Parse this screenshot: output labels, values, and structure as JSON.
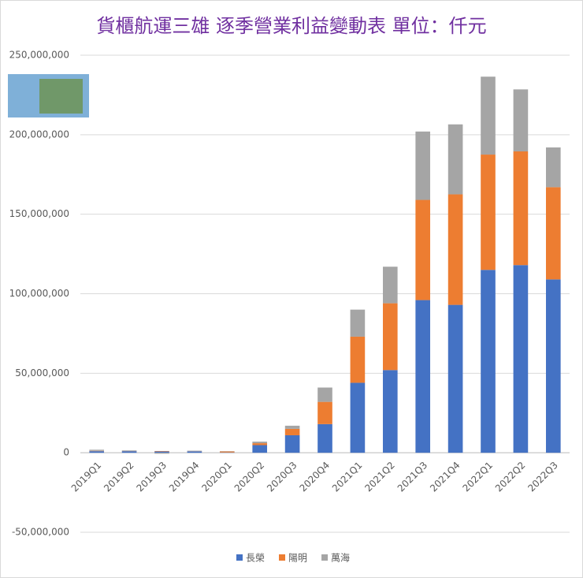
{
  "chart_data": {
    "type": "bar",
    "stacked": true,
    "title": "貨櫃航運三雄 逐季營業利益變動表 單位：仟元",
    "categories": [
      "2019Q1",
      "2019Q2",
      "2019Q3",
      "2019Q4",
      "2020Q1",
      "2020Q2",
      "2020Q3",
      "2020Q4",
      "2021Q1",
      "2021Q2",
      "2021Q3",
      "2021Q4",
      "2022Q1",
      "2022Q2",
      "2022Q3"
    ],
    "series": [
      {
        "name": "長榮",
        "color": "#4472c4",
        "values": [
          1000000,
          1000000,
          800000,
          900000,
          200000,
          4800000,
          11000000,
          18000000,
          44000000,
          52000000,
          96000000,
          93000000,
          115000000,
          118000000,
          109000000
        ]
      },
      {
        "name": "陽明",
        "color": "#ed7d31",
        "values": [
          200000,
          100000,
          300000,
          100000,
          600000,
          1200000,
          4000000,
          14000000,
          29000000,
          42000000,
          63000000,
          69500000,
          72500000,
          71500000,
          58000000
        ]
      },
      {
        "name": "萬海",
        "color": "#a5a5a5",
        "values": [
          700000,
          400000,
          -600000,
          300000,
          200000,
          1000000,
          2000000,
          9000000,
          17000000,
          23000000,
          43000000,
          44000000,
          49000000,
          39000000,
          25000000
        ]
      }
    ],
    "ylim": [
      -50000000,
      250000000
    ],
    "yticks": [
      {
        "value": -50000000,
        "label": "-50,000,000"
      },
      0,
      {
        "value": 50000000,
        "label": "50,000,000"
      },
      {
        "value": 100000000,
        "label": "100,000,000"
      },
      {
        "value": 150000000,
        "label": "150,000,000"
      },
      {
        "value": 200000000,
        "label": "200,000,000"
      },
      {
        "value": 250000000,
        "label": "250,000,000"
      }
    ],
    "grid": true,
    "legend": "bottom"
  }
}
